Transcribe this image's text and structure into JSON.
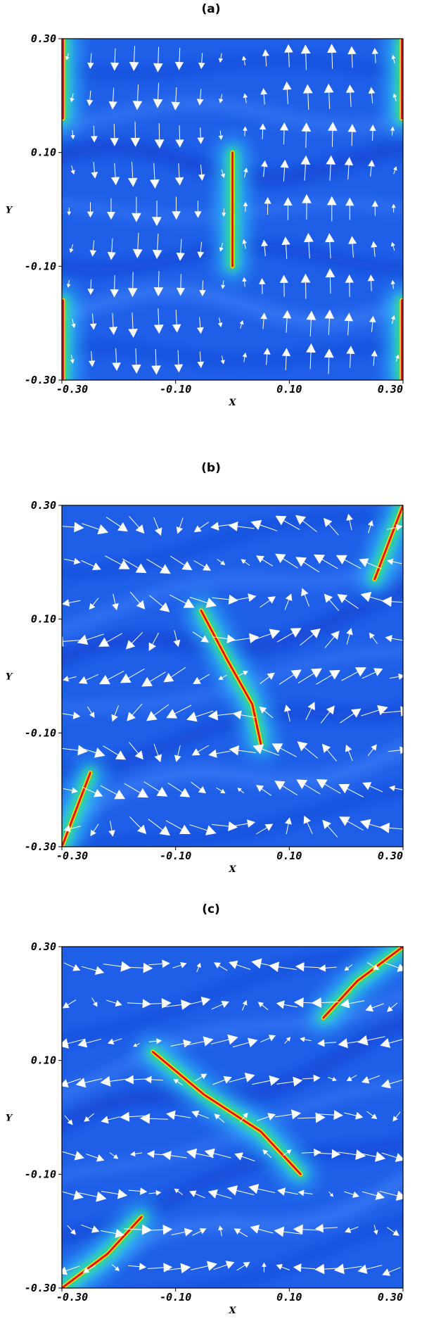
{
  "colors": {
    "background": "#1f5fe8",
    "background_dark": "#0a2fc2",
    "band_light": "#4f92ff",
    "halo_cyan": "#33d8ff",
    "halo_green": "#2fe07a",
    "sheet_yellow": "#ffe000",
    "sheet_red": "#e01414",
    "arrow": "#ffffff"
  },
  "chart_data": [
    {
      "type": "heatmap",
      "panel_label": "(a)",
      "xlabel": "X",
      "ylabel": "Y",
      "xlim": [
        -0.3,
        0.3
      ],
      "ylim": [
        -0.3,
        0.3
      ],
      "xticks": [
        "-0.30",
        "-0.10",
        "0.10",
        "0.30"
      ],
      "yticks": [
        "0.30",
        "0.10",
        "-0.10",
        "-0.30"
      ],
      "field": "current density with velocity vectors",
      "current_sheets": [
        {
          "points": [
            [
              0.0,
              0.1
            ],
            [
              0.0,
              -0.1
            ]
          ]
        },
        {
          "points": [
            [
              -0.298,
              0.3
            ],
            [
              -0.298,
              0.16
            ]
          ]
        },
        {
          "points": [
            [
              -0.298,
              -0.16
            ],
            [
              -0.298,
              -0.3
            ]
          ]
        },
        {
          "points": [
            [
              0.298,
              0.3
            ],
            [
              0.298,
              0.16
            ]
          ]
        },
        {
          "points": [
            [
              0.298,
              -0.16
            ],
            [
              0.298,
              -0.3
            ]
          ]
        }
      ],
      "flow": "vertical flows: downward on the left half, upward on the right half, converging toward the central current sheet"
    },
    {
      "type": "heatmap",
      "panel_label": "(b)",
      "xlabel": "X",
      "ylabel": "Y",
      "xlim": [
        -0.3,
        0.3
      ],
      "ylim": [
        -0.3,
        0.3
      ],
      "xticks": [
        "-0.30",
        "-0.10",
        "0.10",
        "0.30"
      ],
      "yticks": [
        "0.30",
        "0.10",
        "-0.10",
        "-0.30"
      ],
      "field": "current density with velocity vectors",
      "current_sheets": [
        {
          "points": [
            [
              -0.055,
              0.115
            ],
            [
              -0.01,
              0.03
            ],
            [
              0.035,
              -0.05
            ],
            [
              0.05,
              -0.12
            ]
          ]
        },
        {
          "points": [
            [
              0.25,
              0.17
            ],
            [
              0.275,
              0.235
            ],
            [
              0.3,
              0.3
            ]
          ]
        },
        {
          "points": [
            [
              -0.25,
              -0.17
            ],
            [
              -0.275,
              -0.235
            ],
            [
              -0.3,
              -0.3
            ]
          ]
        }
      ],
      "flow": "mixed horizontal and downward flows around the tilted current sheets"
    },
    {
      "type": "heatmap",
      "panel_label": "(c)",
      "xlabel": "X",
      "ylabel": "Y",
      "xlim": [
        -0.3,
        0.3
      ],
      "ylim": [
        -0.3,
        0.3
      ],
      "xticks": [
        "-0.30",
        "-0.10",
        "0.10",
        "0.30"
      ],
      "yticks": [
        "0.30",
        "0.10",
        "-0.10",
        "-0.30"
      ],
      "field": "current density with velocity vectors",
      "current_sheets": [
        {
          "points": [
            [
              -0.14,
              0.115
            ],
            [
              -0.05,
              0.04
            ],
            [
              0.05,
              -0.025
            ],
            [
              0.12,
              -0.1
            ]
          ]
        },
        {
          "points": [
            [
              0.16,
              0.175
            ],
            [
              0.22,
              0.24
            ],
            [
              0.3,
              0.3
            ]
          ]
        },
        {
          "points": [
            [
              -0.16,
              -0.175
            ],
            [
              -0.22,
              -0.24
            ],
            [
              -0.3,
              -0.3
            ]
          ]
        }
      ],
      "flow": "horizontal flows in bands around the elongated diagonal current sheet"
    }
  ]
}
